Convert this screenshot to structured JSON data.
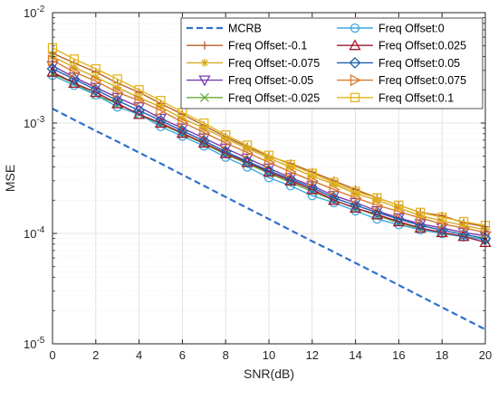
{
  "chart_data": {
    "type": "line",
    "xlabel": "SNR(dB)",
    "ylabel": "MSE",
    "xlim": [
      0,
      20
    ],
    "ylim": [
      1e-05,
      0.01
    ],
    "yscale": "log",
    "grid": true,
    "legend_placement": "top-right",
    "x_ticks": [
      "0",
      "2",
      "4",
      "6",
      "8",
      "10",
      "12",
      "14",
      "16",
      "18",
      "20"
    ],
    "y_ticks": [
      {
        "base": "10",
        "exp": "-5"
      },
      {
        "base": "10",
        "exp": "-4"
      },
      {
        "base": "10",
        "exp": "-3"
      },
      {
        "base": "10",
        "exp": "-2"
      }
    ],
    "x": [
      0,
      1,
      2,
      3,
      4,
      5,
      6,
      7,
      8,
      9,
      10,
      11,
      12,
      13,
      14,
      15,
      16,
      17,
      18,
      19,
      20
    ],
    "series": [
      {
        "name": "MCRB",
        "color": "#2f6fce",
        "marker": "none",
        "dashed": true,
        "values": [
          0.00135,
          0.00107,
          0.00085,
          0.00068,
          0.00054,
          0.00043,
          0.00034,
          0.00027,
          0.000214,
          0.00017,
          0.000135,
          0.000107,
          8.5e-05,
          6.8e-05,
          5.4e-05,
          4.3e-05,
          3.4e-05,
          2.7e-05,
          2.14e-05,
          1.7e-05,
          1.35e-05
        ]
      },
      {
        "name": "Freq Offset:-0.1",
        "color": "#b5602a",
        "marker": "plus",
        "values": [
          0.0043,
          0.0035,
          0.0029,
          0.0023,
          0.0019,
          0.0015,
          0.0012,
          0.00095,
          0.00075,
          0.00061,
          0.0005,
          0.00043,
          0.00036,
          0.0003,
          0.00025,
          0.00021,
          0.00018,
          0.000155,
          0.000145,
          0.000125,
          0.000115
        ]
      },
      {
        "name": "Freq Offset:-0.075",
        "color": "#d4ac20",
        "marker": "asterisk",
        "values": [
          0.004,
          0.0032,
          0.0026,
          0.0021,
          0.0017,
          0.0014,
          0.0011,
          0.0009,
          0.00072,
          0.00059,
          0.00048,
          0.0004,
          0.00033,
          0.00028,
          0.00023,
          0.0002,
          0.00017,
          0.000145,
          0.00013,
          0.000118,
          0.000108
        ]
      },
      {
        "name": "Freq Offset:-0.05",
        "color": "#7b3bb0",
        "marker": "triangle-down",
        "values": [
          0.0033,
          0.0026,
          0.0021,
          0.0017,
          0.0014,
          0.0011,
          0.0009,
          0.00073,
          0.00059,
          0.00048,
          0.00039,
          0.00032,
          0.00027,
          0.00022,
          0.00019,
          0.00016,
          0.000138,
          0.000122,
          0.000112,
          0.000102,
          9.5e-05
        ]
      },
      {
        "name": "Freq Offset:-0.025",
        "color": "#69a83a",
        "marker": "x",
        "values": [
          0.0028,
          0.0023,
          0.0018,
          0.0015,
          0.0012,
          0.00098,
          0.0008,
          0.00065,
          0.00052,
          0.00043,
          0.00035,
          0.00029,
          0.00024,
          0.0002,
          0.00017,
          0.000145,
          0.000125,
          0.00011,
          0.000102,
          9.4e-05,
          8.8e-05
        ]
      },
      {
        "name": "Freq Offset:0",
        "color": "#3fa7dd",
        "marker": "circle",
        "values": [
          0.0027,
          0.0022,
          0.0018,
          0.0014,
          0.0012,
          0.00093,
          0.00076,
          0.00062,
          0.00049,
          0.0004,
          0.00032,
          0.00027,
          0.00022,
          0.00019,
          0.00016,
          0.000135,
          0.00012,
          0.000108,
          0.0001,
          9.3e-05,
          8.8e-05
        ]
      },
      {
        "name": "Freq Offset:0.025",
        "color": "#a0192d",
        "marker": "triangle-up",
        "values": [
          0.0029,
          0.0023,
          0.0019,
          0.0015,
          0.0012,
          0.001,
          0.00081,
          0.00066,
          0.00053,
          0.00044,
          0.00036,
          0.0003,
          0.00025,
          0.0002,
          0.00017,
          0.000148,
          0.000128,
          0.000112,
          0.000102,
          9.4e-05,
          8.3e-05
        ]
      },
      {
        "name": "Freq Offset:0.05",
        "color": "#1f5fb0",
        "marker": "diamond",
        "values": [
          0.0031,
          0.0025,
          0.002,
          0.0016,
          0.0013,
          0.00105,
          0.00085,
          0.00069,
          0.00055,
          0.00045,
          0.00037,
          0.00031,
          0.00026,
          0.00021,
          0.00018,
          0.000155,
          0.000135,
          0.000118,
          0.000107,
          9.8e-05,
          9e-05
        ]
      },
      {
        "name": "Freq Offset:0.075",
        "color": "#d9792e",
        "marker": "triangle-right",
        "values": [
          0.0037,
          0.0029,
          0.0024,
          0.0019,
          0.0016,
          0.0013,
          0.00102,
          0.00082,
          0.00066,
          0.00054,
          0.00044,
          0.00036,
          0.0003,
          0.00025,
          0.00021,
          0.00018,
          0.000158,
          0.000138,
          0.000122,
          0.000112,
          0.000102
        ]
      },
      {
        "name": "Freq Offset:0.1",
        "color": "#e3b51d",
        "marker": "square",
        "values": [
          0.0048,
          0.0038,
          0.0031,
          0.0025,
          0.002,
          0.0016,
          0.00125,
          0.001,
          0.00078,
          0.00063,
          0.00051,
          0.00042,
          0.00035,
          0.00029,
          0.00024,
          0.00021,
          0.00018,
          0.000155,
          0.00014,
          0.000128,
          0.000118
        ]
      }
    ]
  }
}
